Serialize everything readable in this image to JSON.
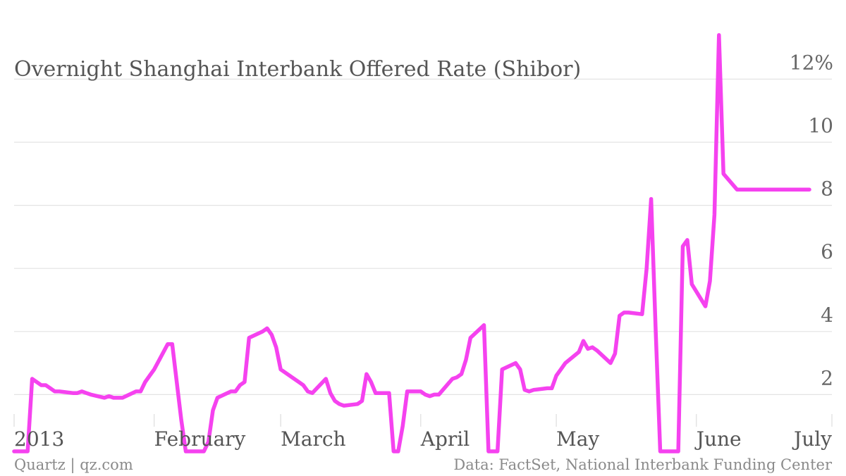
{
  "chart_data": {
    "type": "line",
    "title": "Overnight Shanghai Interbank Offered Rate (Shibor)",
    "ylim": [
      0,
      14
    ],
    "yticks": [
      {
        "value": 2,
        "label": "2"
      },
      {
        "value": 4,
        "label": "4"
      },
      {
        "value": 6,
        "label": "6"
      },
      {
        "value": 8,
        "label": "8"
      },
      {
        "value": 10,
        "label": "10"
      },
      {
        "value": 12,
        "label": "12%"
      }
    ],
    "xlim": [
      "2013-01-01",
      "2013-07-01"
    ],
    "xticks": [
      {
        "value": "2013-01-01",
        "label": "2013"
      },
      {
        "value": "2013-02-01",
        "label": "February"
      },
      {
        "value": "2013-03-01",
        "label": "March"
      },
      {
        "value": "2013-04-01",
        "label": "April"
      },
      {
        "value": "2013-05-01",
        "label": "May"
      },
      {
        "value": "2013-06-01",
        "label": "June"
      },
      {
        "value": "2013-07-01",
        "label": "July"
      }
    ],
    "grid": true,
    "color": "#f542ef",
    "x": [
      "2013-01-01",
      "2013-01-04",
      "2013-01-05",
      "2013-01-07",
      "2013-01-08",
      "2013-01-09",
      "2013-01-10",
      "2013-01-11",
      "2013-01-14",
      "2013-01-15",
      "2013-01-16",
      "2013-01-17",
      "2013-01-18",
      "2013-01-21",
      "2013-01-22",
      "2013-01-23",
      "2013-01-24",
      "2013-01-25",
      "2013-01-28",
      "2013-01-29",
      "2013-01-30",
      "2013-01-31",
      "2013-02-01",
      "2013-02-04",
      "2013-02-05",
      "2013-02-06",
      "2013-02-07",
      "2013-02-08",
      "2013-02-11",
      "2013-02-12",
      "2013-02-13",
      "2013-02-14",
      "2013-02-15",
      "2013-02-18",
      "2013-02-19",
      "2013-02-20",
      "2013-02-21",
      "2013-02-22",
      "2013-02-25",
      "2013-02-26",
      "2013-02-27",
      "2013-02-28",
      "2013-03-01",
      "2013-03-04",
      "2013-03-05",
      "2013-03-06",
      "2013-03-07",
      "2013-03-08",
      "2013-03-11",
      "2013-03-12",
      "2013-03-13",
      "2013-03-14",
      "2013-03-15",
      "2013-03-18",
      "2013-03-19",
      "2013-03-20",
      "2013-03-21",
      "2013-03-22",
      "2013-03-25",
      "2013-03-26",
      "2013-03-27",
      "2013-03-28",
      "2013-03-29",
      "2013-04-01",
      "2013-04-02",
      "2013-04-03",
      "2013-04-04",
      "2013-04-05",
      "2013-04-08",
      "2013-04-09",
      "2013-04-10",
      "2013-04-11",
      "2013-04-12",
      "2013-04-15",
      "2013-04-16",
      "2013-04-17",
      "2013-04-18",
      "2013-04-19",
      "2013-04-22",
      "2013-04-23",
      "2013-04-24",
      "2013-04-25",
      "2013-04-26",
      "2013-04-29",
      "2013-04-30",
      "2013-05-01",
      "2013-05-02",
      "2013-05-03",
      "2013-05-06",
      "2013-05-07",
      "2013-05-08",
      "2013-05-09",
      "2013-05-10",
      "2013-05-13",
      "2013-05-14",
      "2013-05-15",
      "2013-05-16",
      "2013-05-17",
      "2013-05-20",
      "2013-05-21",
      "2013-05-22",
      "2013-05-23",
      "2013-05-24",
      "2013-05-27",
      "2013-05-28",
      "2013-05-29",
      "2013-05-30",
      "2013-05-31",
      "2013-06-03",
      "2013-06-04",
      "2013-06-05",
      "2013-06-06",
      "2013-06-07",
      "2013-06-10",
      "2013-06-11",
      "2013-06-12",
      "2013-06-13",
      "2013-06-14",
      "2013-06-17",
      "2013-06-18",
      "2013-06-19",
      "2013-06-20",
      "2013-06-21",
      "2013-06-24",
      "2013-06-25",
      "2013-06-26"
    ],
    "y": [
      0.2,
      0.2,
      2.5,
      2.3,
      2.3,
      2.2,
      2.1,
      2.1,
      2.05,
      2.05,
      2.1,
      2.05,
      2.0,
      1.9,
      1.95,
      1.9,
      1.9,
      1.9,
      2.1,
      2.1,
      2.4,
      2.6,
      2.8,
      3.6,
      3.6,
      2.4,
      1.2,
      0.2,
      0.2,
      0.2,
      0.5,
      1.5,
      1.9,
      2.1,
      2.1,
      2.3,
      2.4,
      3.8,
      4.0,
      4.1,
      3.9,
      3.5,
      2.8,
      2.5,
      2.4,
      2.3,
      2.1,
      2.05,
      2.5,
      2.05,
      1.8,
      1.7,
      1.65,
      1.7,
      1.8,
      2.65,
      2.4,
      2.05,
      2.05,
      0.2,
      0.2,
      1.0,
      2.1,
      2.1,
      2.0,
      1.95,
      2.0,
      2.0,
      2.5,
      2.55,
      2.65,
      3.1,
      3.8,
      4.2,
      0.2,
      0.2,
      0.2,
      2.8,
      3.0,
      2.8,
      2.15,
      2.1,
      2.15,
      2.2,
      2.2,
      2.6,
      2.8,
      3.0,
      3.35,
      3.7,
      3.45,
      3.5,
      3.4,
      3.0,
      3.3,
      4.5,
      4.6,
      4.6,
      4.55,
      6.0,
      8.2,
      4.0,
      0.2,
      0.2,
      0.2,
      6.7,
      6.9,
      5.5,
      4.8,
      5.6,
      7.7,
      13.4,
      9.0,
      8.5,
      8.5,
      8.5,
      8.5,
      8.5,
      8.5,
      8.5,
      8.5,
      8.5,
      8.5,
      8.5,
      8.5,
      8.5
    ]
  },
  "footer": {
    "source_left": "Quartz | qz.com",
    "source_right": "Data: FactSet, National Interbank Funding Center"
  }
}
